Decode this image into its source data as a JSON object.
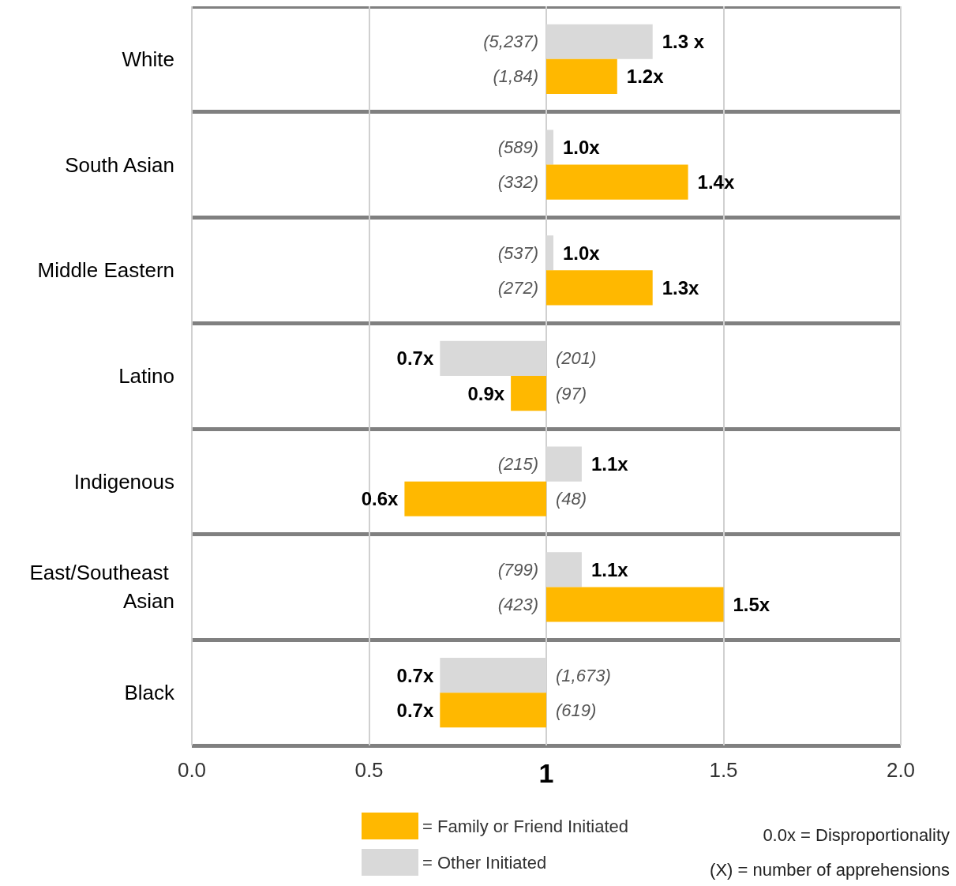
{
  "chart_data": {
    "type": "bar",
    "orientation": "horizontal",
    "categories": [
      "White",
      "South Asian",
      "Middle Eastern",
      "Latino",
      "Indigenous",
      "East/Southeast Asian",
      "Black"
    ],
    "series": [
      {
        "name": "= Other Initiated",
        "color": "#d9d9d9",
        "base": [
          1,
          1,
          1,
          1,
          1,
          1,
          1
        ],
        "values": [
          0.3,
          0.02,
          0.02,
          -0.3,
          0.1,
          0.1,
          -0.3
        ]
      },
      {
        "name": "= Family or Friend Initiated",
        "color": "#ffb800",
        "base": [
          1,
          1,
          1,
          1,
          1,
          1,
          1
        ],
        "values": [
          0.2,
          0.4,
          0.3,
          -0.1,
          -0.4,
          0.5,
          -0.3
        ]
      }
    ],
    "xlim": [
      0,
      2
    ],
    "xticks": [
      {
        "value": 0,
        "label": "0.0"
      },
      {
        "value": 0.5,
        "label": "0.5"
      },
      {
        "value": 1,
        "label": "1"
      },
      {
        "value": 1.5,
        "label": "1.5"
      },
      {
        "value": 2,
        "label": "2.0"
      }
    ],
    "grid": "x",
    "legend": "bottom",
    "annotations": [
      {
        "text": "1.3 x",
        "x": 1.3,
        "y": "White"
      },
      {
        "text": "1.2x",
        "x": 1.2,
        "y": "White"
      },
      {
        "text": "1.0x",
        "x": 1.02,
        "y": "South Asian"
      },
      {
        "text": "1.4x",
        "x": 1.4,
        "y": "South Asian"
      },
      {
        "text": "1.0x",
        "x": 1.02,
        "y": "Middle Eastern"
      },
      {
        "text": "1.3x",
        "x": 1.3,
        "y": "Middle Eastern"
      },
      {
        "text": "0.7x",
        "x": 0.7,
        "y": "Latino"
      },
      {
        "text": "0.9x",
        "x": 0.9,
        "y": "Latino"
      },
      {
        "text": "1.1x",
        "x": 1.1,
        "y": "Indigenous"
      },
      {
        "text": "0.6x",
        "x": 0.6,
        "y": "Indigenous"
      },
      {
        "text": "1.1x",
        "x": 1.1,
        "y": "East/Southeast Asian"
      },
      {
        "text": "1.5x",
        "x": 1.5,
        "y": "East/Southeast Asian"
      },
      {
        "text": "0.7x",
        "x": 0.7,
        "y": "Black"
      },
      {
        "text": "0.7x",
        "x": 0.7,
        "y": "Black"
      },
      "(5,237)",
      "(1,84)",
      "(589)",
      "(332)",
      "(537)",
      "(272)",
      "(201)",
      "(97)",
      "(215)",
      "(48)",
      "(799)",
      "(423)",
      "(1,673)",
      "(619)",
      "0.0x = Disproportionality",
      "(X) = number of apprehensions"
    ]
  }
}
